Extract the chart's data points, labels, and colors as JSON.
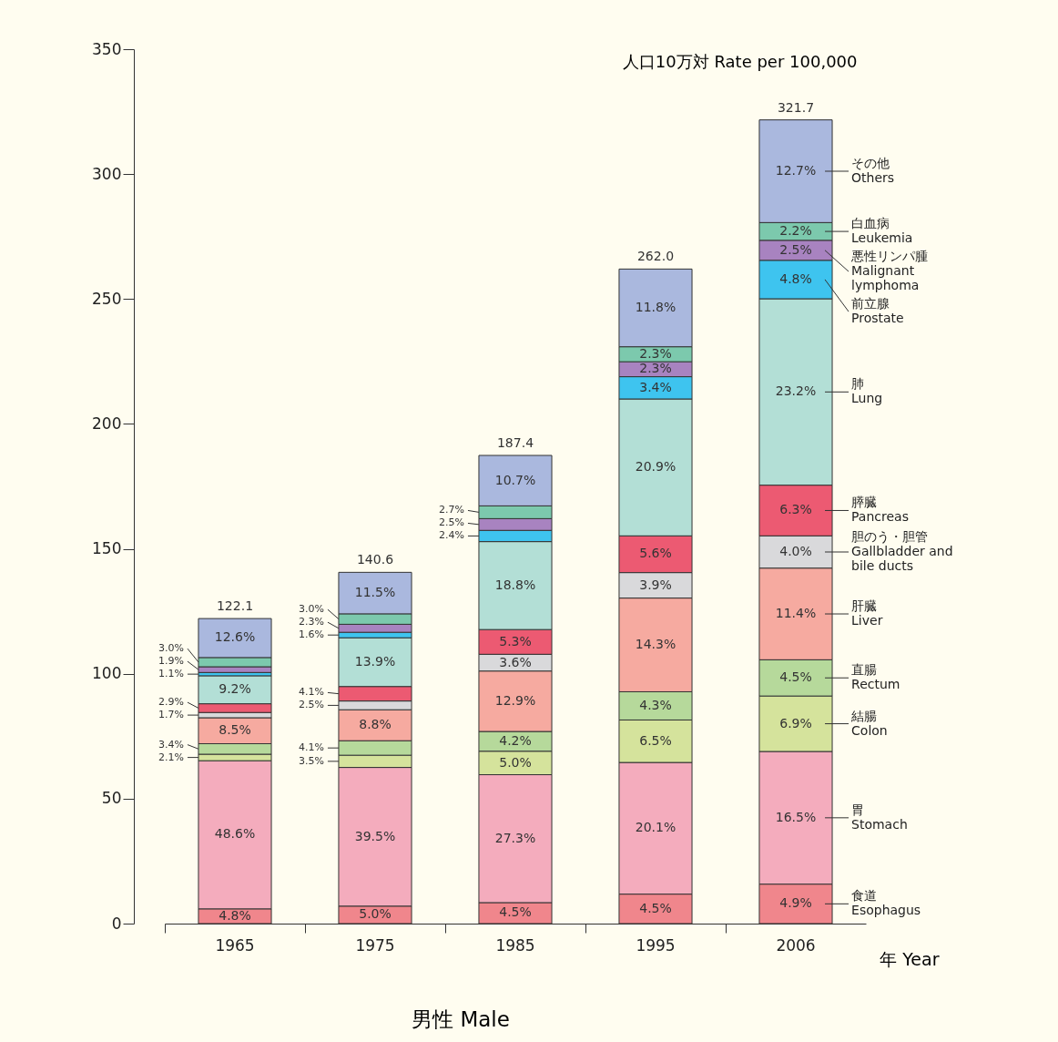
{
  "chart_data": {
    "type": "bar",
    "stacked": true,
    "title": "男性 Male",
    "xlabel": "年 Year",
    "ylabel": "人口10万対 Rate per 100,000",
    "categories": [
      "1965",
      "1975",
      "1985",
      "1995",
      "2006"
    ],
    "ylim": [
      0,
      350
    ],
    "yticks": [
      0,
      50,
      100,
      150,
      200,
      250,
      300,
      350
    ],
    "legend": "right",
    "totals": [
      "122.1",
      "140.6",
      "187.4",
      "262.0",
      "321.7"
    ],
    "series": [
      {
        "name": "食道 Esophagus",
        "color": "#f0868c",
        "values": [
          5.9,
          7.0,
          8.4,
          11.8,
          15.8
        ]
      },
      {
        "name": "胃 Stomach",
        "color": "#f4acbd",
        "values": [
          59.3,
          55.5,
          51.2,
          52.7,
          53.1
        ]
      },
      {
        "name": "結腸 Colon",
        "color": "#d5e39c",
        "values": [
          2.6,
          4.9,
          9.4,
          17.0,
          22.2
        ]
      },
      {
        "name": "直腸 Rectum",
        "color": "#b6d99b",
        "values": [
          4.2,
          5.8,
          7.9,
          11.3,
          14.5
        ]
      },
      {
        "name": "肝臓 Liver",
        "color": "#f6aaa0",
        "values": [
          10.4,
          12.4,
          24.2,
          37.5,
          36.7
        ]
      },
      {
        "name": "胆のう・胆管 Gallbladder and bile ducts",
        "color": "#d9d9db",
        "values": [
          2.1,
          3.5,
          6.7,
          10.2,
          12.9
        ]
      },
      {
        "name": "膵臓 Pancreas",
        "color": "#ec5a72",
        "values": [
          3.5,
          5.8,
          9.9,
          14.7,
          20.3
        ]
      },
      {
        "name": "肺 Lung",
        "color": "#b3dfd6",
        "values": [
          11.2,
          19.5,
          35.2,
          54.8,
          74.6
        ]
      },
      {
        "name": "前立腺 Prostate",
        "color": "#3ec4ef",
        "values": [
          1.3,
          2.2,
          4.5,
          8.9,
          15.4
        ]
      },
      {
        "name": "悪性リンパ腫 Malignant lymphoma",
        "color": "#a883c0",
        "values": [
          2.3,
          3.2,
          4.7,
          6.0,
          8.0
        ]
      },
      {
        "name": "白血病 Leukemia",
        "color": "#7cc9ad",
        "values": [
          3.7,
          4.2,
          5.1,
          6.0,
          7.1
        ]
      },
      {
        "name": "その他 Others",
        "color": "#aab8de",
        "values": [
          15.6,
          16.6,
          20.2,
          31.1,
          41.1
        ]
      }
    ],
    "annotations": [
      "4.8%",
      "48.6%",
      "2.1%",
      "3.4%",
      "8.5%",
      "1.7%",
      "2.9%",
      "9.2%",
      "1.1%",
      "1.9%",
      "3.0%",
      "12.6%",
      "5.0%",
      "39.5%",
      "3.5%",
      "4.1%",
      "8.8%",
      "2.5%",
      "4.1%",
      "13.9%",
      "1.6%",
      "2.3%",
      "3.0%",
      "11.5%",
      "4.5%",
      "27.3%",
      "5.0%",
      "4.2%",
      "12.9%",
      "3.6%",
      "5.3%",
      "18.8%",
      "2.4%",
      "2.5%",
      "2.7%",
      "10.7%",
      "4.5%",
      "20.1%",
      "6.5%",
      "4.3%",
      "14.3%",
      "3.9%",
      "5.6%",
      "20.9%",
      "3.4%",
      "2.3%",
      "2.3%",
      "11.8%",
      "4.9%",
      "16.5%",
      "6.9%",
      "4.5%",
      "11.4%",
      "4.0%",
      "6.3%",
      "23.2%",
      "4.8%",
      "2.5%",
      "2.2%",
      "12.7%"
    ]
  }
}
